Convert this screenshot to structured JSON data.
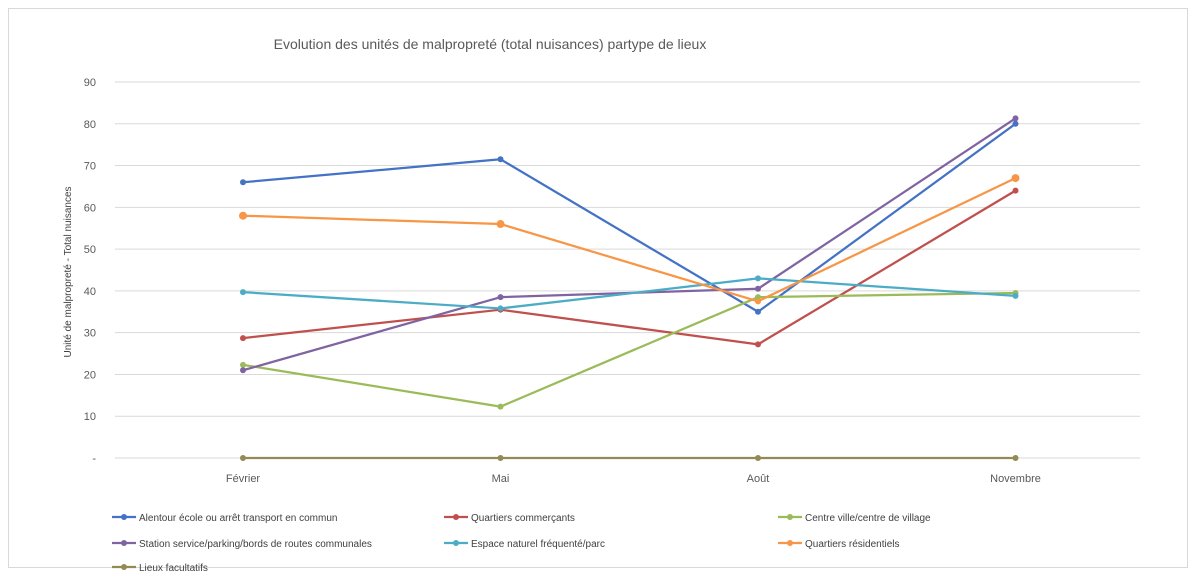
{
  "chart_data": {
    "type": "line",
    "title": "Evolution des unités de malpropreté (total nuisances) partype de lieux",
    "xlabel": "",
    "ylabel": "Unité de malpropreté - Total nuisances",
    "categories": [
      "Février",
      "Mai",
      "Août",
      "Novembre"
    ],
    "ylim": [
      0,
      90
    ],
    "yticks": [
      "-",
      "10",
      "20",
      "30",
      "40",
      "50",
      "60",
      "70",
      "80",
      "90"
    ],
    "grid": true,
    "legend_position": "bottom",
    "series": [
      {
        "name": "Alentour école ou arrêt transport en commun",
        "color": "#4472c4",
        "values": [
          66,
          71.5,
          35,
          80
        ]
      },
      {
        "name": "Quartiers commerçants",
        "color": "#c0504d",
        "values": [
          28.7,
          35.5,
          27.2,
          64
        ]
      },
      {
        "name": "Centre ville/centre de village",
        "color": "#9bbb59",
        "values": [
          22.3,
          12.3,
          38.5,
          39.5
        ]
      },
      {
        "name": "Station service/parking/bords de routes communales",
        "color": "#8064a2",
        "values": [
          21,
          38.5,
          40.5,
          81.3
        ]
      },
      {
        "name": "Espace naturel fréquenté/parc",
        "color": "#4bacc6",
        "values": [
          39.7,
          35.8,
          43,
          38.8
        ]
      },
      {
        "name": "Quartiers résidentiels",
        "color": "#f79646",
        "values": [
          58,
          56,
          37.5,
          67
        ]
      },
      {
        "name": "Lieux facultatifs",
        "color": "#948a54",
        "values": [
          0,
          0,
          0,
          0
        ]
      }
    ]
  }
}
